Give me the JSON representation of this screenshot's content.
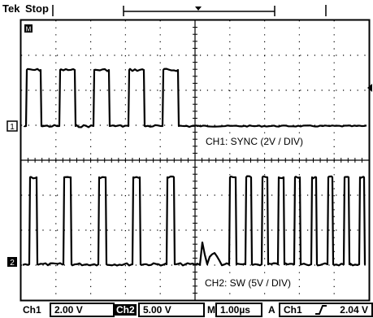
{
  "status": {
    "brand": "Tek",
    "run_state": "Stop",
    "trigger_marker": "M"
  },
  "channels": [
    {
      "id": "CH1",
      "marker": "1",
      "annotation": "CH1:  SYNC (2V / DIV)"
    },
    {
      "id": "CH2",
      "marker": "2",
      "annotation": "CH2:  SW (5V / DIV)"
    }
  ],
  "readout": {
    "ch1_label": "Ch1",
    "ch1_scale": "2.00 V",
    "ch2_label": "Ch2",
    "ch2_scale": "5.00 V",
    "time_label": "M",
    "time_scale": "1.00µs",
    "trig_mode": "A",
    "trig_source": "Ch1",
    "trig_slope_icon": "rising-edge-icon",
    "trig_level": "2.04 V"
  }
}
